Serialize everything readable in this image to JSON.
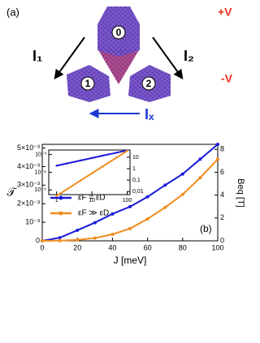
{
  "diagram": {
    "panel_label": "(a)",
    "plus_v": "+V",
    "minus_v": "-V",
    "currents": [
      "I₁",
      "I₂",
      "Iₓ"
    ],
    "nodes": [
      "0",
      "1",
      "2"
    ]
  },
  "chart_data": [
    {
      "type": "line",
      "x_label": "J [meV]",
      "y_label": "𝒯",
      "y2_label": "Beq [T]",
      "annotation": "(b)",
      "x": [
        0,
        10,
        20,
        30,
        40,
        50,
        60,
        70,
        80,
        90,
        100
      ],
      "series": [
        {
          "name": "εF = εD",
          "color": "#1a1adb",
          "values": [
            0,
            0.00017,
            0.00057,
            0.00098,
            0.00145,
            0.00184,
            0.00237,
            0.003,
            0.0036,
            0.0044,
            0.0052
          ]
        },
        {
          "name": "εF ≫ εD",
          "color": "#f08c1e",
          "values": [
            0,
            1e-05,
            5e-05,
            0.00015,
            0.00035,
            0.00066,
            0.00118,
            0.0018,
            0.0025,
            0.0034,
            0.0044
          ]
        }
      ],
      "xlim": [
        0,
        100
      ],
      "xticks": [
        0,
        20,
        40,
        60,
        80,
        100
      ],
      "ylim": [
        0,
        0.0052
      ],
      "yticks": [
        0,
        {
          "value": 0.001,
          "label": "10⁻³"
        },
        {
          "value": 0.002,
          "label": "2×10⁻³"
        },
        {
          "value": 0.003,
          "label": "3×10⁻³"
        },
        {
          "value": 0.004,
          "label": "4×10⁻³"
        },
        {
          "value": 0.005,
          "label": "5×10⁻³"
        }
      ],
      "y2lim": [
        0,
        8.44
      ],
      "y2ticks": [
        0,
        2,
        4,
        6,
        8
      ]
    },
    {
      "type": "line",
      "log_x": true,
      "log_y": true,
      "x": [
        1,
        2,
        5,
        10,
        20,
        50,
        100
      ],
      "series": [
        {
          "color": "#1a1adb",
          "values": [
            1.3e-05,
            3.2e-05,
            0.000105,
            0.00026,
            0.00065,
            0.0021,
            0.0052
          ]
        },
        {
          "color": "#f08c1e",
          "values": [
            1e-10,
            1.4e-09,
            4.7e-08,
            6.6e-07,
            9.4e-06,
            0.00031,
            0.0044
          ]
        }
      ],
      "xlim": [
        0.6,
        120
      ],
      "xticks": [
        1,
        10,
        100
      ],
      "ylim": [
        1.6e-10,
        0.006
      ],
      "yticks": [
        {
          "value": 1e-09,
          "label": "10⁻⁹"
        },
        {
          "value": 1e-06,
          "label": "10⁻⁶"
        },
        {
          "value": 0.001,
          "label": "10⁻³"
        }
      ],
      "y2lim": [
        0.0054,
        43
      ],
      "y2ticks": [
        {
          "value": 0.01,
          "label": "0,01"
        },
        {
          "value": 0.1,
          "label": "0,1"
        },
        1,
        10
      ]
    }
  ]
}
